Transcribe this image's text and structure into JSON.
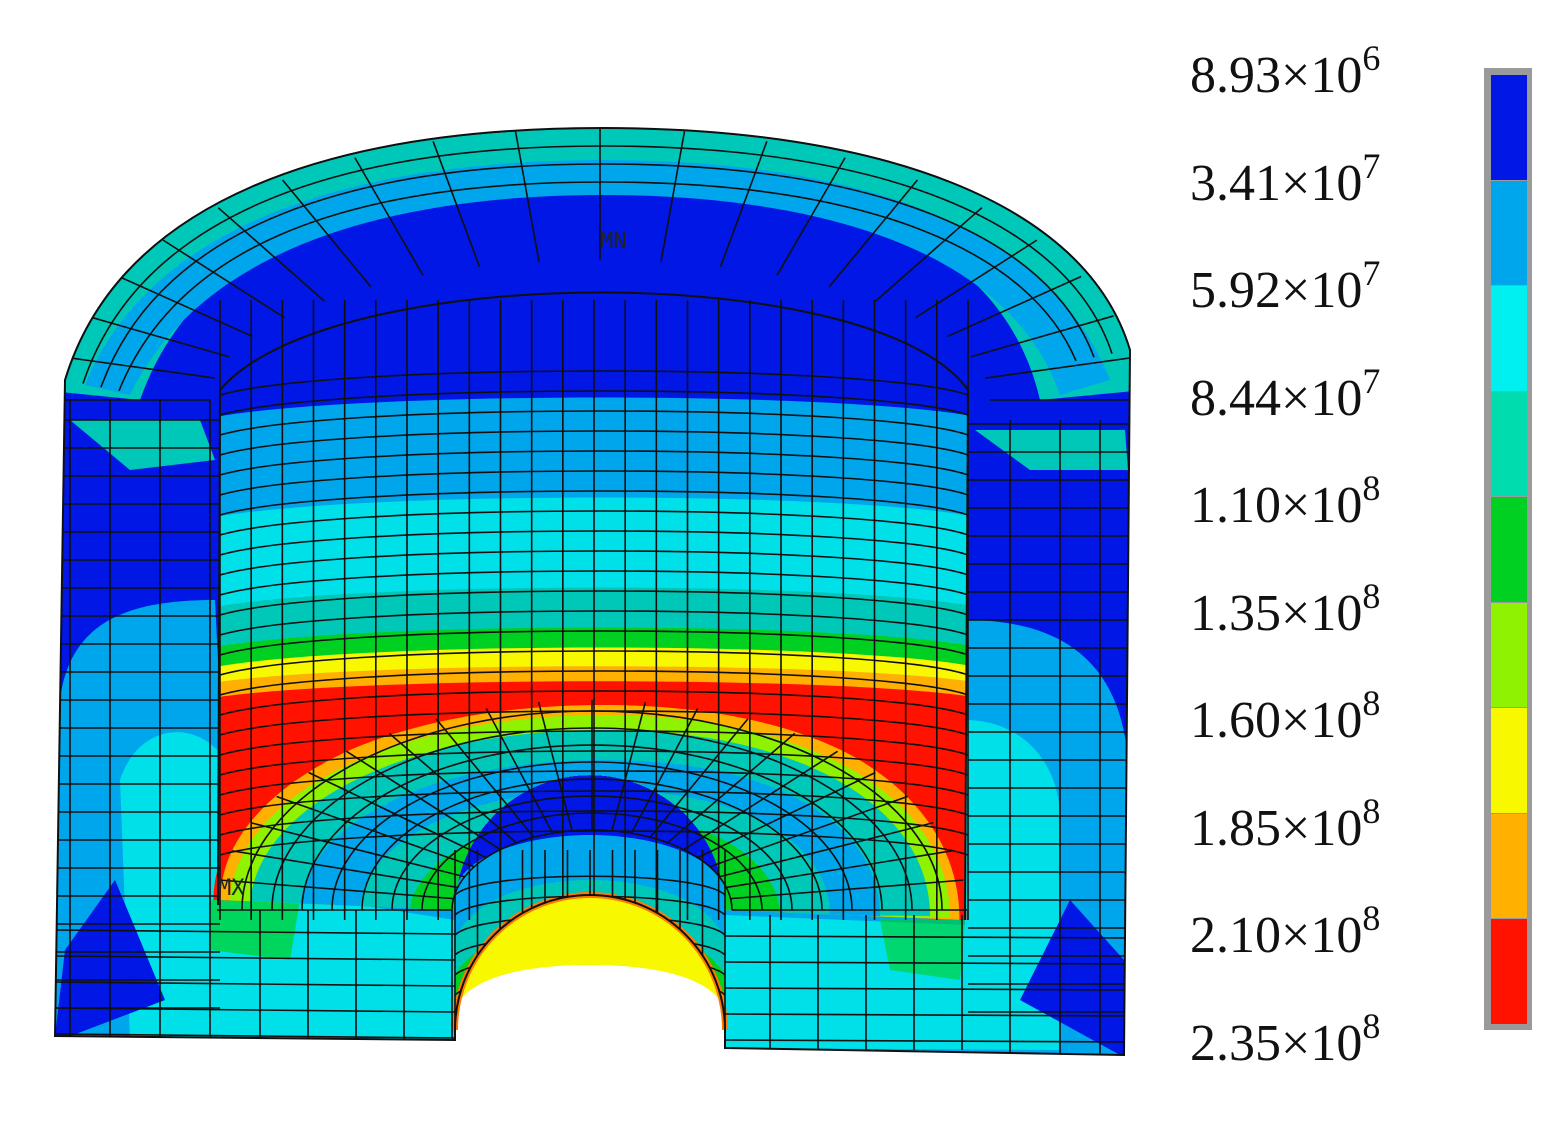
{
  "figure": {
    "min_marker": "MN",
    "max_marker": "MX"
  },
  "legend": {
    "ticks": [
      {
        "mantissa": "8.93",
        "times": "×10",
        "exp": "6"
      },
      {
        "mantissa": "3.41",
        "times": "×10",
        "exp": "7"
      },
      {
        "mantissa": "5.92",
        "times": "×10",
        "exp": "7"
      },
      {
        "mantissa": "8.44",
        "times": "×10",
        "exp": "7"
      },
      {
        "mantissa": "1.10",
        "times": "×10",
        "exp": "8"
      },
      {
        "mantissa": "1.35",
        "times": "×10",
        "exp": "8"
      },
      {
        "mantissa": "1.60",
        "times": "×10",
        "exp": "8"
      },
      {
        "mantissa": "1.85",
        "times": "×10",
        "exp": "8"
      },
      {
        "mantissa": "2.10",
        "times": "×10",
        "exp": "8"
      },
      {
        "mantissa": "2.35",
        "times": "×10",
        "exp": "8"
      }
    ],
    "colors": [
      "#0017e6",
      "#00a6ec",
      "#00f0f0",
      "#00dcae",
      "#00d022",
      "#8ef200",
      "#f8f800",
      "#ffb000",
      "#ff1200"
    ]
  }
}
